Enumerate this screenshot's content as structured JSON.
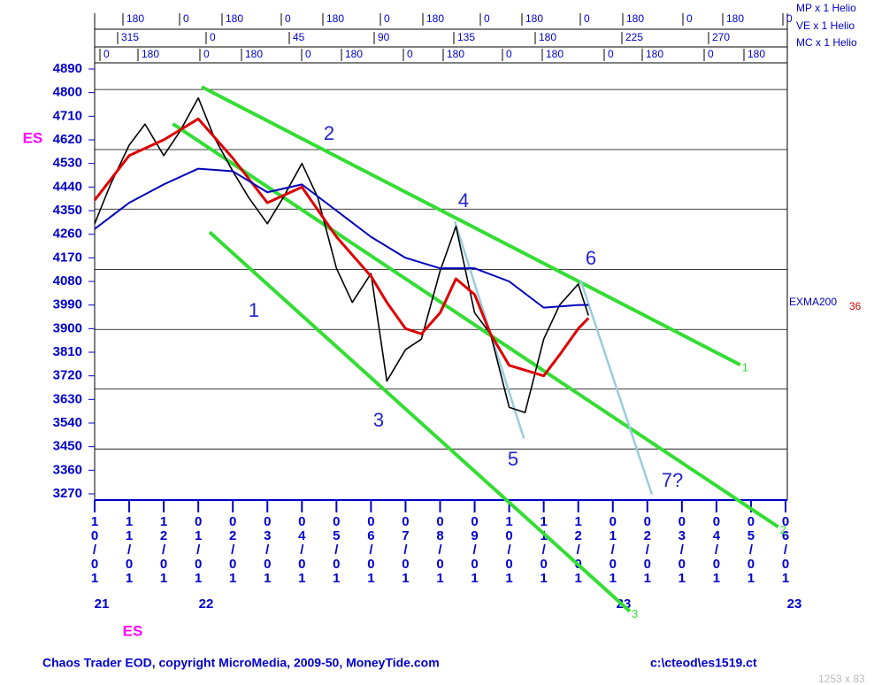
{
  "chart_data": {
    "type": "line",
    "ylabel": "ES",
    "xlabel": "ES",
    "footer_left": "Chaos Trader EOD, copyright MicroMedia, 2009-50, MoneyTide.com",
    "footer_right": "c:\\cteod\\es1519.ct",
    "corner_note": "1253 x 83",
    "ylim": [
      3270,
      4890
    ],
    "yticks": [
      4890,
      4800,
      4710,
      4620,
      4530,
      4440,
      4350,
      4260,
      4170,
      4080,
      3990,
      3900,
      3810,
      3720,
      3630,
      3540,
      3450,
      3360,
      3270
    ],
    "hgrid": [
      4812,
      4583,
      4356,
      4126,
      3897,
      3670,
      3441
    ],
    "xlim": [
      "10/01/21",
      "06/01/23"
    ],
    "xticks": [
      {
        "value": "10/01/21",
        "label": "10/01"
      },
      {
        "value": "11/01/21",
        "label": "11/01"
      },
      {
        "value": "12/01/21",
        "label": "12/01"
      },
      {
        "value": "01/01/22",
        "label": "01/01"
      },
      {
        "value": "02/01/22",
        "label": "02/01"
      },
      {
        "value": "03/01/22",
        "label": "03/01"
      },
      {
        "value": "04/01/22",
        "label": "04/01"
      },
      {
        "value": "05/01/22",
        "label": "05/01"
      },
      {
        "value": "06/01/22",
        "label": "06/01"
      },
      {
        "value": "07/01/22",
        "label": "07/01"
      },
      {
        "value": "08/01/22",
        "label": "08/01"
      },
      {
        "value": "09/01/22",
        "label": "09/01"
      },
      {
        "value": "10/01/22",
        "label": "10/01"
      },
      {
        "value": "11/01/22",
        "label": "11/01"
      },
      {
        "value": "12/01/22",
        "label": "12/01"
      },
      {
        "value": "01/01/23",
        "label": "01/01"
      },
      {
        "value": "02/01/23",
        "label": "02/01"
      },
      {
        "value": "03/01/23",
        "label": "03/01"
      },
      {
        "value": "04/01/23",
        "label": "04/01"
      },
      {
        "value": "05/01/23",
        "label": "05/01"
      },
      {
        "value": "06/01/23",
        "label": "06/01"
      }
    ],
    "year_labels": [
      "21",
      "22",
      "23",
      "23"
    ],
    "header_rows": [
      {
        "name": "MP x 1 Helio",
        "labels": [
          "180",
          "0",
          "180",
          "0",
          "180",
          "0",
          "180",
          "0",
          "180",
          "0",
          "180",
          "0",
          "180",
          "0"
        ]
      },
      {
        "name": "VE x 1 Helio",
        "labels": [
          "315",
          "0",
          "45",
          "90",
          "135",
          "180",
          "225",
          "270"
        ]
      },
      {
        "name": "MC x 1 Helio",
        "labels": [
          "0",
          "180",
          "0",
          "180",
          "0",
          "180",
          "0",
          "180",
          "0",
          "180",
          "0",
          "180",
          "0",
          "180"
        ]
      }
    ],
    "series": [
      {
        "name": "ES",
        "color": "#000000",
        "x": [
          "10/01/21",
          "10/15/21",
          "11/01/21",
          "11/15/21",
          "12/01/21",
          "12/15/21",
          "01/01/22",
          "01/15/22",
          "02/01/22",
          "02/15/22",
          "03/01/22",
          "03/15/22",
          "04/01/22",
          "04/15/22",
          "05/01/22",
          "05/15/22",
          "06/01/22",
          "06/15/22",
          "07/01/22",
          "07/15/22",
          "08/01/22",
          "08/15/22",
          "09/01/22",
          "09/15/22",
          "10/01/22",
          "10/15/22",
          "11/01/22",
          "11/15/22",
          "12/01/22",
          "12/10/22"
        ],
        "values": [
          4300,
          4450,
          4600,
          4680,
          4560,
          4650,
          4780,
          4630,
          4500,
          4400,
          4300,
          4400,
          4530,
          4400,
          4130,
          4000,
          4110,
          3700,
          3820,
          3860,
          4120,
          4290,
          3960,
          3880,
          3600,
          3580,
          3860,
          3990,
          4070,
          3950
        ]
      },
      {
        "name": "36",
        "color": "#dd0000",
        "x": [
          "10/01/21",
          "11/01/21",
          "12/01/21",
          "01/01/22",
          "02/01/22",
          "03/01/22",
          "04/01/22",
          "05/01/22",
          "06/01/22",
          "06/15/22",
          "07/01/22",
          "07/15/22",
          "08/01/22",
          "08/15/22",
          "09/01/22",
          "09/15/22",
          "10/01/22",
          "11/01/22",
          "11/15/22",
          "12/01/22",
          "12/10/22"
        ],
        "values": [
          4390,
          4560,
          4620,
          4700,
          4550,
          4380,
          4440,
          4250,
          4100,
          4000,
          3900,
          3880,
          3960,
          4090,
          4030,
          3880,
          3760,
          3720,
          3800,
          3900,
          3940
        ]
      },
      {
        "name": "EXMA200",
        "color": "#0000bb",
        "x": [
          "10/01/21",
          "11/01/21",
          "12/01/21",
          "01/01/22",
          "02/01/22",
          "03/01/22",
          "04/01/22",
          "05/01/22",
          "06/01/22",
          "07/01/22",
          "08/01/22",
          "09/01/22",
          "10/01/22",
          "11/01/22",
          "12/01/22",
          "12/10/22"
        ],
        "values": [
          4280,
          4380,
          4450,
          4510,
          4500,
          4420,
          4450,
          4350,
          4250,
          4170,
          4130,
          4130,
          4080,
          3980,
          3990,
          3990
        ]
      }
    ],
    "trendlines": [
      {
        "name": "1",
        "color": "#33dd33",
        "x": [
          "01/04/22",
          "04/22/23"
        ],
        "values": [
          4822,
          3762
        ]
      },
      {
        "name": "2",
        "color": "#33dd33",
        "x": [
          "12/09/21",
          "05/25/23"
        ],
        "values": [
          4681,
          3144
        ]
      },
      {
        "name": "3",
        "color": "#33dd33",
        "x": [
          "01/11/22",
          "01/16/23"
        ],
        "values": [
          4268,
          2822
        ]
      },
      {
        "color": "#99ccdd",
        "x": [
          "08/14/22",
          "10/14/22"
        ],
        "values": [
          4309,
          3481
        ]
      },
      {
        "color": "#99ccdd",
        "x": [
          "12/03/22",
          "02/05/23"
        ],
        "values": [
          4086,
          3268
        ]
      }
    ],
    "annotations": [
      "1",
      "2",
      "3",
      "4",
      "5",
      "6",
      "7?"
    ]
  }
}
